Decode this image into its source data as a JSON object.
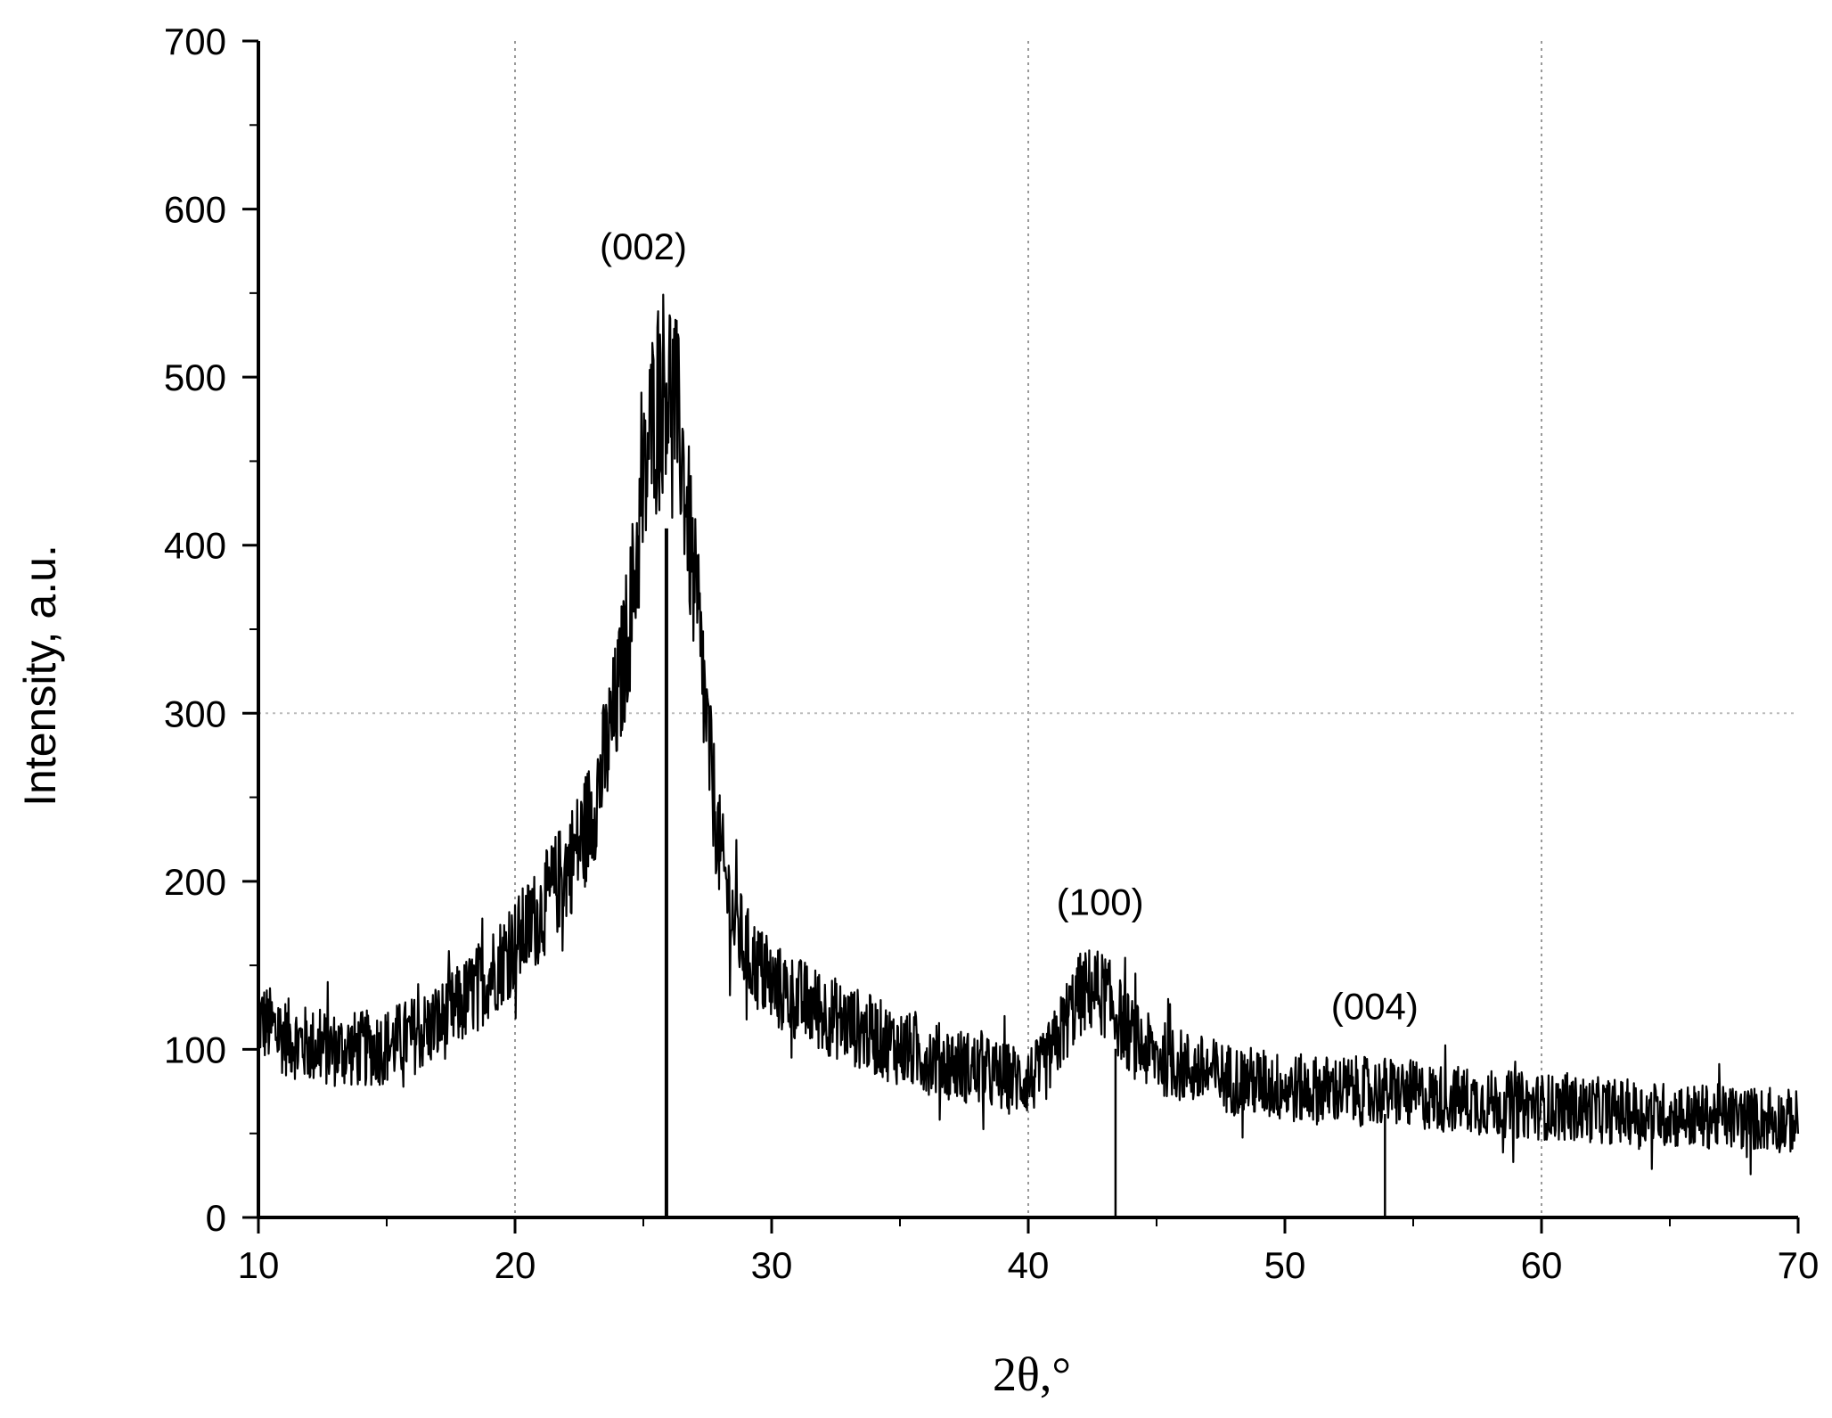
{
  "chart_data": {
    "type": "line",
    "title": "",
    "xlabel": "2θ,°",
    "ylabel": "Intensity, a.u.",
    "xlim": [
      10,
      70
    ],
    "ylim": [
      0,
      700
    ],
    "x_ticks": [
      "10",
      "20",
      "30",
      "40",
      "50",
      "60",
      "70"
    ],
    "y_ticks": [
      "0",
      "100",
      "200",
      "300",
      "400",
      "500",
      "600",
      "700"
    ],
    "grid": {
      "vertical_lines_at": [
        20,
        40,
        60
      ],
      "horizontal_lines_at": [
        300
      ],
      "style": "dotted"
    },
    "series": [
      {
        "x": [
          10,
          11,
          12,
          13,
          14,
          15,
          16,
          17,
          18,
          19,
          20,
          21,
          22,
          22.5,
          23,
          23.5,
          24,
          24.5,
          25,
          25.3,
          25.6,
          25.9,
          26.2,
          26.5,
          26.8,
          27.2,
          27.6,
          28,
          28.5,
          29,
          30,
          31,
          32,
          33,
          34,
          35,
          36,
          37,
          38,
          39,
          40,
          40.5,
          41,
          41.5,
          42,
          42.5,
          43,
          43.5,
          44,
          44.5,
          45,
          46,
          47,
          48,
          49,
          50,
          51,
          52,
          53,
          54,
          55,
          56,
          57,
          58,
          59,
          60,
          61,
          62,
          63,
          64,
          65,
          66,
          67,
          68,
          69,
          70
        ],
        "y": [
          118,
          108,
          102,
          100,
          100,
          102,
          108,
          115,
          128,
          145,
          162,
          182,
          208,
          222,
          242,
          272,
          308,
          360,
          430,
          470,
          495,
          500,
          490,
          455,
          405,
          340,
          270,
          215,
          178,
          158,
          138,
          130,
          122,
          115,
          108,
          101,
          96,
          92,
          88,
          83,
          82,
          86,
          100,
          118,
          132,
          136,
          132,
          120,
          108,
          100,
          96,
          90,
          86,
          82,
          80,
          77,
          76,
          76,
          75,
          75,
          73,
          71,
          70,
          68,
          67,
          66,
          65,
          64,
          63,
          62,
          61,
          60,
          60,
          59,
          58,
          57
        ]
      }
    ],
    "reference_lines": [
      {
        "label": "(002)",
        "x": 25.9,
        "height": 1.0
      },
      {
        "label": "(100)",
        "x": 43.4,
        "height": 0.28
      },
      {
        "label": "(004)",
        "x": 53.9,
        "height": 0.12
      }
    ],
    "annotations": [
      {
        "text": "(002)",
        "x": 25.0,
        "y": 570
      },
      {
        "text": "(100)",
        "x": 42.8,
        "y": 180
      },
      {
        "text": "(004)",
        "x": 53.5,
        "y": 118
      }
    ],
    "colors": {
      "line": "#000000",
      "grid": "#999999",
      "axis": "#000000"
    }
  }
}
